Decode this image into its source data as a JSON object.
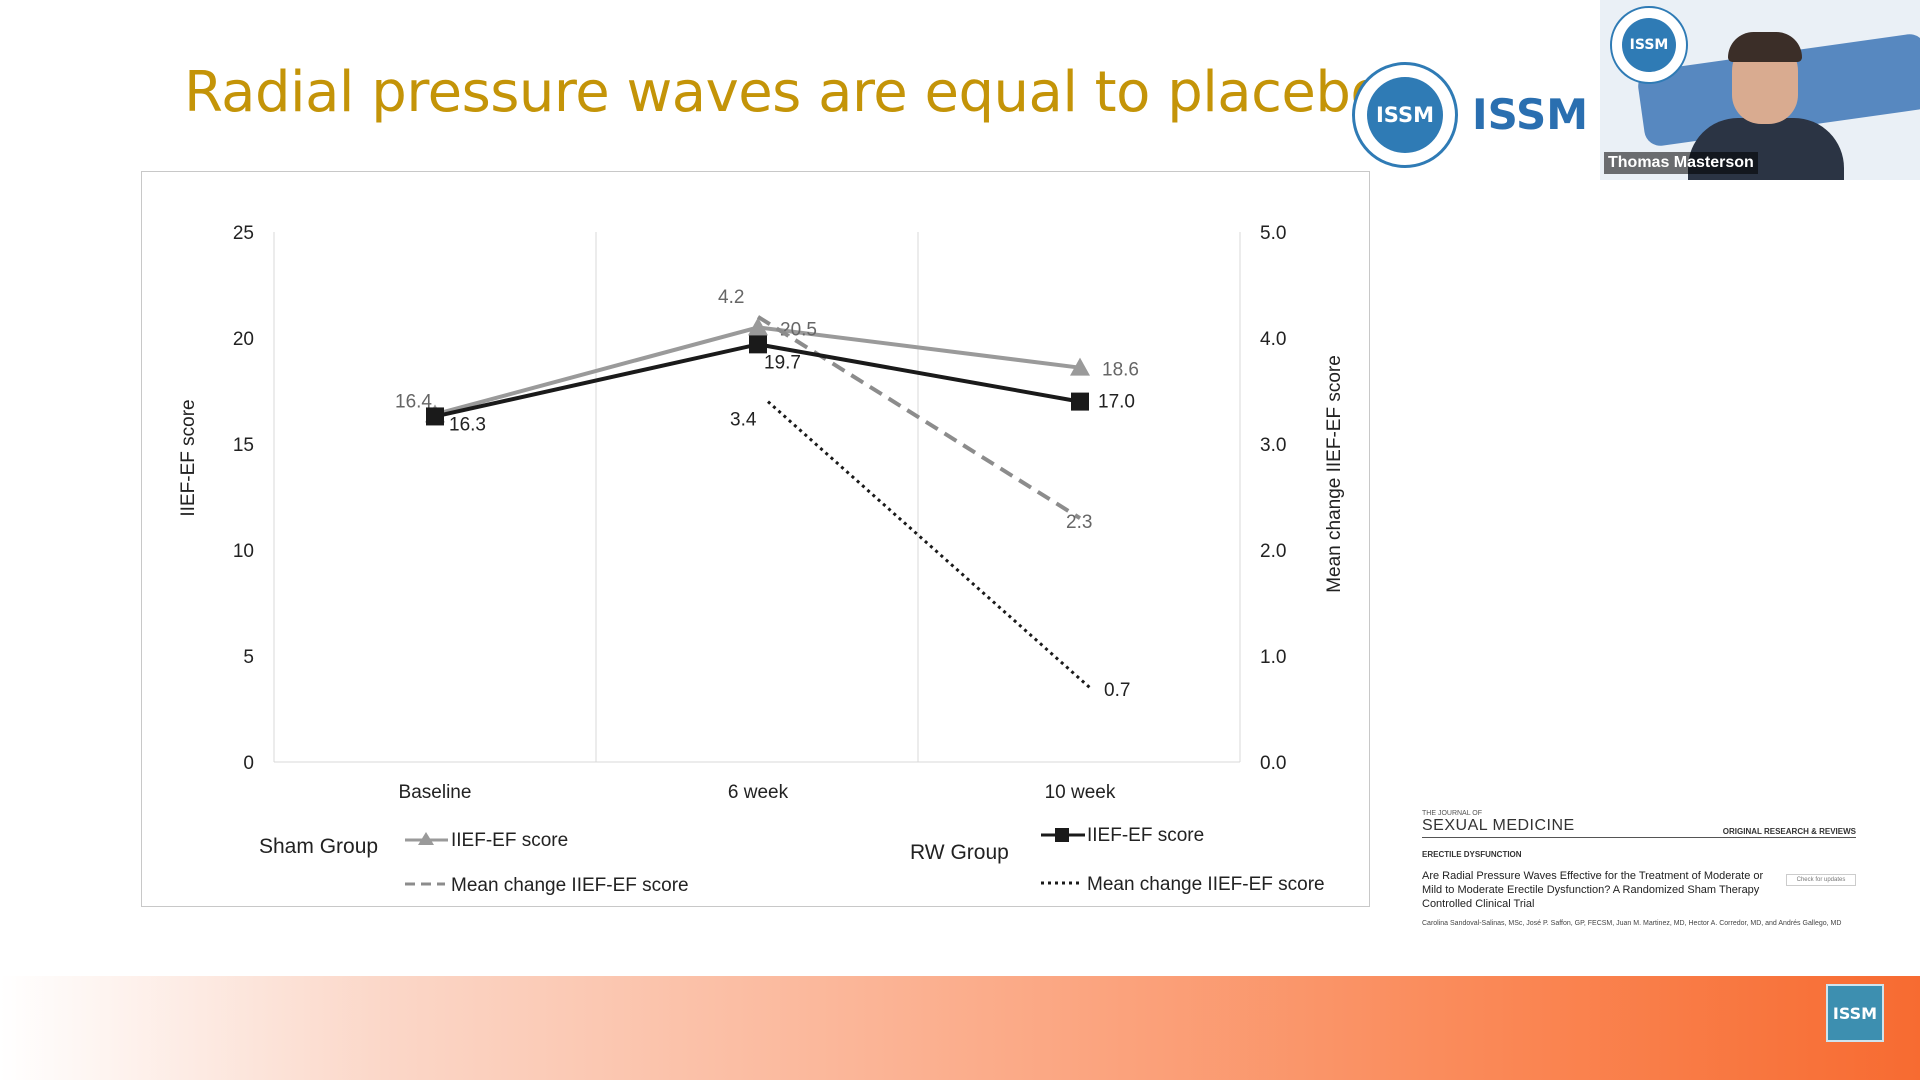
{
  "slide": {
    "title": "Radial pressure waves are equal to placebo"
  },
  "branding": {
    "issm_seal_text": "ISSM",
    "issm_header_text": "ISSM W",
    "corner_logo_text": "ISSM"
  },
  "video": {
    "speaker_name": "Thomas Masterson"
  },
  "paper": {
    "journal_top": "THE JOURNAL OF",
    "journal_name": "SEXUAL MEDICINE",
    "category": "ORIGINAL RESEARCH & REVIEWS",
    "section": "ERECTILE DYSFUNCTION",
    "title": "Are Radial Pressure Waves Effective for the Treatment of Moderate or Mild to Moderate Erectile Dysfunction? A Randomized Sham Therapy Controlled Clinical Trial",
    "badge": "Check for updates",
    "authors": "Carolina Sandoval-Salinas, MSc, José P. Saffon, GP, FECSM, Juan M. Martinez, MD, Hector A. Corredor, MD, and Andrés Gallego, MD"
  },
  "chart_data": {
    "type": "line",
    "categories": [
      "Baseline",
      "6 week",
      "10 week"
    ],
    "ylabel": "IIEF-EF score",
    "y2label": "Mean change IIEF-EF score",
    "ylim": [
      0,
      25
    ],
    "y2lim": [
      0,
      5
    ],
    "yticks": [
      "0",
      "5",
      "10",
      "15",
      "20",
      "25"
    ],
    "y2ticks": [
      "0.0",
      "1.0",
      "2.0",
      "3.0",
      "4.0",
      "5.0"
    ],
    "grid": "vertical",
    "legend_groups": [
      "Sham Group",
      "RW Group"
    ],
    "series": [
      {
        "name": "IIEF-EF score",
        "group": "Sham Group",
        "axis": "left",
        "values": [
          16.4,
          20.5,
          18.6
        ],
        "labels": [
          "16.4",
          "20.5",
          "18.6"
        ],
        "color": "#9a9a9a",
        "marker": "triangle",
        "dash": "solid"
      },
      {
        "name": "Mean change IIEF-EF score",
        "group": "Sham Group",
        "axis": "right",
        "values": [
          null,
          4.2,
          2.3
        ],
        "labels": [
          "",
          "4.2",
          "2.3"
        ],
        "color": "#8c8c8c",
        "marker": "none",
        "dash": "dashed"
      },
      {
        "name": "IIEF-EF score",
        "group": "RW Group",
        "axis": "left",
        "values": [
          16.3,
          19.7,
          17.0
        ],
        "labels": [
          "16.3",
          "19.7",
          "17.0"
        ],
        "color": "#1a1a1a",
        "marker": "square",
        "dash": "solid"
      },
      {
        "name": "Mean change IIEF-EF score",
        "group": "RW Group",
        "axis": "right",
        "values": [
          null,
          3.4,
          0.7
        ],
        "labels": [
          "",
          "3.4",
          "0.7"
        ],
        "color": "#1a1a1a",
        "marker": "none",
        "dash": "dotted"
      }
    ]
  }
}
